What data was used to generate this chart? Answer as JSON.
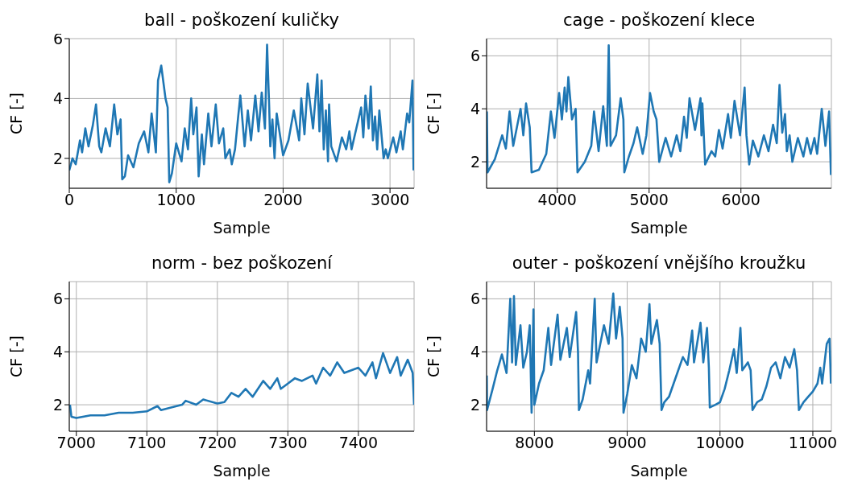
{
  "chart_data": [
    {
      "type": "line",
      "title": "ball - poškození kuličky",
      "xlabel": "Sample",
      "ylabel": "CF [-]",
      "color": "#1f77b4",
      "grid": true,
      "xlim": [
        0,
        3225
      ],
      "ylim": [
        1,
        6
      ],
      "xticks": [
        0,
        1000,
        2000,
        3000
      ],
      "yticks": [
        2,
        4,
        6
      ],
      "x": [
        0,
        30,
        60,
        100,
        120,
        150,
        180,
        220,
        250,
        280,
        300,
        340,
        380,
        420,
        450,
        480,
        495,
        520,
        550,
        600,
        650,
        700,
        740,
        770,
        810,
        830,
        860,
        900,
        920,
        935,
        960,
        1000,
        1050,
        1080,
        1110,
        1140,
        1160,
        1190,
        1210,
        1240,
        1260,
        1300,
        1330,
        1370,
        1400,
        1440,
        1460,
        1500,
        1520,
        1550,
        1580,
        1600,
        1640,
        1670,
        1700,
        1740,
        1770,
        1800,
        1830,
        1850,
        1870,
        1880,
        1900,
        1920,
        1940,
        2000,
        2050,
        2100,
        2150,
        2170,
        2200,
        2230,
        2280,
        2320,
        2340,
        2360,
        2380,
        2400,
        2420,
        2430,
        2450,
        2500,
        2550,
        2590,
        2620,
        2640,
        2730,
        2750,
        2770,
        2800,
        2820,
        2840,
        2860,
        2880,
        2900,
        2940,
        2960,
        2980,
        3030,
        3060,
        3100,
        3120,
        3160,
        3180,
        3210,
        3220
      ],
      "values": [
        1.6,
        2.0,
        1.8,
        2.6,
        2.2,
        3.0,
        2.4,
        3.1,
        3.8,
        2.4,
        2.2,
        3.0,
        2.4,
        3.8,
        2.8,
        3.3,
        1.3,
        1.4,
        2.1,
        1.7,
        2.5,
        2.9,
        2.2,
        3.5,
        2.2,
        4.6,
        5.1,
        4.0,
        3.7,
        1.2,
        1.5,
        2.5,
        1.9,
        3.0,
        2.3,
        4.0,
        2.8,
        3.7,
        1.4,
        2.8,
        1.8,
        3.5,
        2.4,
        3.8,
        2.5,
        3.0,
        2.0,
        2.3,
        1.8,
        2.3,
        3.4,
        4.1,
        2.4,
        3.6,
        2.6,
        4.1,
        2.9,
        4.2,
        3.0,
        5.8,
        3.7,
        2.4,
        3.3,
        2.0,
        3.5,
        2.1,
        2.6,
        3.6,
        2.6,
        4.0,
        2.8,
        4.5,
        3.0,
        4.8,
        2.9,
        4.6,
        2.3,
        3.6,
        1.9,
        3.8,
        2.4,
        1.9,
        2.7,
        2.3,
        2.9,
        2.3,
        3.7,
        2.7,
        4.1,
        3.0,
        4.4,
        2.6,
        3.4,
        2.3,
        3.6,
        2.0,
        2.3,
        2.0,
        2.7,
        2.2,
        2.9,
        2.3,
        3.5,
        3.2,
        4.6,
        1.6
      ]
    },
    {
      "type": "line",
      "title": "cage - poškození klece",
      "xlabel": "Sample",
      "ylabel": "CF [-]",
      "color": "#1f77b4",
      "grid": true,
      "xlim": [
        3230,
        6985
      ],
      "ylim": [
        1,
        6.65
      ],
      "xticks": [
        4000,
        5000,
        6000
      ],
      "yticks": [
        2,
        4,
        6
      ],
      "x": [
        3233,
        3240,
        3320,
        3400,
        3440,
        3480,
        3520,
        3600,
        3630,
        3660,
        3700,
        3720,
        3800,
        3880,
        3930,
        3970,
        4020,
        4050,
        4080,
        4100,
        4120,
        4160,
        4200,
        4220,
        4300,
        4370,
        4400,
        4450,
        4500,
        4540,
        4560,
        4580,
        4640,
        4690,
        4720,
        4730,
        4780,
        4830,
        4870,
        4930,
        4970,
        5010,
        5050,
        5080,
        5110,
        5180,
        5240,
        5300,
        5340,
        5380,
        5410,
        5440,
        5500,
        5560,
        5570,
        5580,
        5610,
        5680,
        5720,
        5760,
        5800,
        5860,
        5890,
        5930,
        5990,
        6040,
        6060,
        6090,
        6130,
        6190,
        6250,
        6300,
        6350,
        6390,
        6420,
        6450,
        6480,
        6500,
        6530,
        6560,
        6620,
        6680,
        6720,
        6760,
        6800,
        6830,
        6880,
        6920,
        6960,
        6980
      ],
      "values": [
        3.9,
        1.6,
        2.1,
        3.0,
        2.5,
        3.9,
        2.6,
        4.0,
        3.0,
        4.2,
        3.3,
        1.6,
        1.7,
        2.3,
        3.9,
        2.9,
        4.6,
        3.6,
        4.8,
        3.9,
        5.2,
        3.6,
        4.0,
        1.6,
        2.0,
        2.6,
        3.9,
        2.4,
        4.1,
        2.6,
        6.4,
        2.6,
        3.0,
        4.4,
        3.6,
        1.6,
        2.2,
        2.7,
        3.3,
        2.3,
        3.0,
        4.6,
        3.9,
        3.6,
        2.0,
        2.9,
        2.2,
        3.0,
        2.4,
        3.7,
        2.9,
        4.4,
        3.2,
        4.4,
        3.0,
        4.2,
        1.9,
        2.4,
        2.2,
        3.2,
        2.5,
        3.8,
        2.9,
        4.3,
        3.0,
        4.8,
        3.0,
        1.9,
        2.8,
        2.2,
        3.0,
        2.4,
        3.4,
        2.7,
        4.9,
        3.1,
        3.8,
        2.4,
        3.0,
        2.0,
        2.9,
        2.2,
        2.9,
        2.3,
        2.9,
        2.3,
        4.0,
        2.6,
        3.9,
        1.5
      ]
    },
    {
      "type": "line",
      "title": "norm - bez poškození",
      "xlabel": "Sample",
      "ylabel": "CF [-]",
      "color": "#1f77b4",
      "grid": true,
      "xlim": [
        6990,
        7479
      ],
      "ylim": [
        1,
        6.65
      ],
      "xticks": [
        7000,
        7100,
        7200,
        7300,
        7400
      ],
      "yticks": [
        2,
        4,
        6
      ],
      "x": [
        6991,
        6993,
        7000,
        7020,
        7040,
        7060,
        7080,
        7100,
        7115,
        7120,
        7150,
        7155,
        7170,
        7180,
        7200,
        7210,
        7220,
        7230,
        7240,
        7250,
        7265,
        7275,
        7285,
        7290,
        7300,
        7310,
        7320,
        7335,
        7340,
        7350,
        7360,
        7370,
        7380,
        7400,
        7410,
        7420,
        7425,
        7435,
        7445,
        7455,
        7460,
        7470,
        7477,
        7479
      ],
      "values": [
        2.0,
        1.55,
        1.5,
        1.6,
        1.6,
        1.7,
        1.7,
        1.75,
        1.95,
        1.8,
        2.0,
        2.15,
        2.0,
        2.2,
        2.05,
        2.1,
        2.45,
        2.3,
        2.6,
        2.3,
        2.9,
        2.6,
        3.0,
        2.6,
        2.8,
        3.0,
        2.9,
        3.1,
        2.8,
        3.4,
        3.1,
        3.6,
        3.2,
        3.4,
        3.1,
        3.6,
        3.0,
        3.95,
        3.2,
        3.8,
        3.1,
        3.7,
        3.2,
        2.0
      ]
    },
    {
      "type": "line",
      "title": "outer - poškození vnějšího kroužku",
      "xlabel": "Sample",
      "ylabel": "CF [-]",
      "color": "#1f77b4",
      "grid": true,
      "xlim": [
        7485,
        11200
      ],
      "ylim": [
        1,
        6.65
      ],
      "xticks": [
        8000,
        9000,
        10000,
        11000
      ],
      "yticks": [
        2,
        4,
        6
      ],
      "x": [
        7487,
        7490,
        7550,
        7600,
        7650,
        7700,
        7740,
        7760,
        7780,
        7800,
        7850,
        7880,
        7920,
        7950,
        7960,
        7970,
        7990,
        8000,
        8050,
        8100,
        8150,
        8180,
        8250,
        8280,
        8350,
        8380,
        8450,
        8470,
        8480,
        8520,
        8580,
        8600,
        8650,
        8670,
        8750,
        8800,
        8850,
        8880,
        8920,
        8950,
        8960,
        9000,
        9050,
        9100,
        9150,
        9200,
        9240,
        9260,
        9320,
        9350,
        9370,
        9400,
        9450,
        9500,
        9550,
        9600,
        9650,
        9700,
        9720,
        9790,
        9820,
        9860,
        9880,
        9890,
        9950,
        10000,
        10050,
        10100,
        10150,
        10180,
        10220,
        10240,
        10300,
        10330,
        10350,
        10400,
        10450,
        10500,
        10550,
        10600,
        10650,
        10700,
        10750,
        10800,
        10830,
        10850,
        10900,
        10950,
        11000,
        11050,
        11080,
        11100,
        11150,
        11180,
        11195
      ],
      "values": [
        3.1,
        1.8,
        2.6,
        3.3,
        3.9,
        3.2,
        6.0,
        3.6,
        6.1,
        3.5,
        5.0,
        3.4,
        4.0,
        5.0,
        3.4,
        1.7,
        5.6,
        2.0,
        2.8,
        3.3,
        4.9,
        3.5,
        5.4,
        3.7,
        4.9,
        3.8,
        5.5,
        4.0,
        1.8,
        2.2,
        3.3,
        2.8,
        6.0,
        3.6,
        5.0,
        4.3,
        6.2,
        4.5,
        5.7,
        4.5,
        1.7,
        2.4,
        3.5,
        3.0,
        4.5,
        4.0,
        5.8,
        4.3,
        5.2,
        4.3,
        1.8,
        2.1,
        2.3,
        2.8,
        3.3,
        3.8,
        3.5,
        4.8,
        3.6,
        5.1,
        3.6,
        4.9,
        3.4,
        1.9,
        2.0,
        2.1,
        2.6,
        3.3,
        4.1,
        3.2,
        4.9,
        3.3,
        3.6,
        3.3,
        1.8,
        2.1,
        2.2,
        2.7,
        3.4,
        3.6,
        3.0,
        3.8,
        3.4,
        4.1,
        3.3,
        1.8,
        2.1,
        2.3,
        2.5,
        2.8,
        3.4,
        2.8,
        4.3,
        4.5,
        2.8
      ]
    }
  ]
}
